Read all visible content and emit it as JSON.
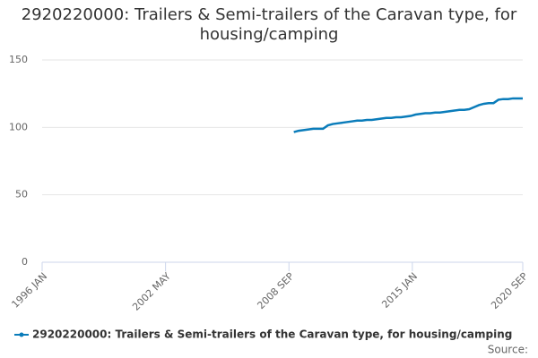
{
  "chart_data": {
    "type": "line",
    "title": "2920220000: Trailers & Semi-trailers of the Caravan type, for housing/camping",
    "source_label": "Source:",
    "x": [
      "2008 DEC",
      "2009 MAR",
      "2009 JUN",
      "2009 SEP",
      "2009 DEC",
      "2010 MAR",
      "2010 JUN",
      "2010 SEP",
      "2010 DEC",
      "2011 MAR",
      "2011 JUN",
      "2011 SEP",
      "2011 DEC",
      "2012 MAR",
      "2012 JUN",
      "2012 SEP",
      "2012 DEC",
      "2013 MAR",
      "2013 JUN",
      "2013 SEP",
      "2013 DEC",
      "2014 MAR",
      "2014 JUN",
      "2014 SEP",
      "2014 DEC",
      "2015 MAR",
      "2015 JUN",
      "2015 SEP",
      "2015 DEC",
      "2016 MAR",
      "2016 JUN",
      "2016 SEP",
      "2016 DEC",
      "2017 MAR",
      "2017 JUN",
      "2017 SEP",
      "2017 DEC",
      "2018 MAR",
      "2018 JUN",
      "2018 SEP",
      "2018 DEC",
      "2019 MAR",
      "2019 JUN",
      "2019 SEP",
      "2019 DEC",
      "2020 MAR",
      "2020 JUN",
      "2020 SEP"
    ],
    "series": [
      {
        "name": "2920220000: Trailers & Semi-trailers of the Caravan type, for housing/camping",
        "color": "#0a7cba",
        "values": [
          96.5,
          97.5,
          98,
          98.5,
          99,
          99,
          99,
          101.5,
          102.5,
          103,
          103.5,
          104,
          104.5,
          105,
          105,
          105.5,
          105.5,
          106,
          106.5,
          107,
          107,
          107.5,
          107.5,
          108,
          108.5,
          109.5,
          110,
          110.5,
          110.5,
          111,
          111,
          111.5,
          112,
          112.5,
          113,
          113,
          113.5,
          115,
          116.5,
          117.5,
          118,
          118,
          120.5,
          121,
          121,
          121.5,
          121.5,
          121.5
        ]
      }
    ],
    "xlim": [
      "1996 JAN",
      "2020 SEP"
    ],
    "xticks": [
      "1996 JAN",
      "2002 MAY",
      "2008 SEP",
      "2015 JAN",
      "2020 SEP"
    ],
    "ylim": [
      0,
      150
    ],
    "yticks": [
      0,
      50,
      100,
      150
    ],
    "grid": true,
    "legend": "bottom"
  }
}
